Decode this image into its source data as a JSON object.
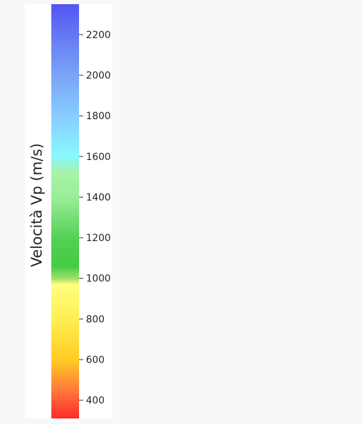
{
  "chart_data": {
    "type": "colorbar",
    "ylabel": "Velocità Vp (m/s)",
    "ylim": [
      310,
      2350
    ],
    "ticks": [
      {
        "value": 400,
        "label": "400"
      },
      {
        "value": 600,
        "label": "600"
      },
      {
        "value": 800,
        "label": "800"
      },
      {
        "value": 1000,
        "label": "1000"
      },
      {
        "value": 1200,
        "label": "1200"
      },
      {
        "value": 1400,
        "label": "1400"
      },
      {
        "value": 1600,
        "label": "1600"
      },
      {
        "value": 1800,
        "label": "1800"
      },
      {
        "value": 2000,
        "label": "2000"
      },
      {
        "value": 2200,
        "label": "2200"
      }
    ],
    "color_stops": [
      {
        "value": 310,
        "color": "#ff2a2a"
      },
      {
        "value": 450,
        "color": "#ff7a3a"
      },
      {
        "value": 600,
        "color": "#ffcc22"
      },
      {
        "value": 800,
        "color": "#ffee55"
      },
      {
        "value": 970,
        "color": "#ffff80"
      },
      {
        "value": 1000,
        "color": "#9ee06a"
      },
      {
        "value": 1060,
        "color": "#44cc44"
      },
      {
        "value": 1200,
        "color": "#55d055"
      },
      {
        "value": 1400,
        "color": "#99ee99"
      },
      {
        "value": 1520,
        "color": "#a8f2a8"
      },
      {
        "value": 1600,
        "color": "#88f8ff"
      },
      {
        "value": 1800,
        "color": "#88ccff"
      },
      {
        "value": 2000,
        "color": "#7aa4f8"
      },
      {
        "value": 2350,
        "color": "#5555f2"
      }
    ]
  }
}
